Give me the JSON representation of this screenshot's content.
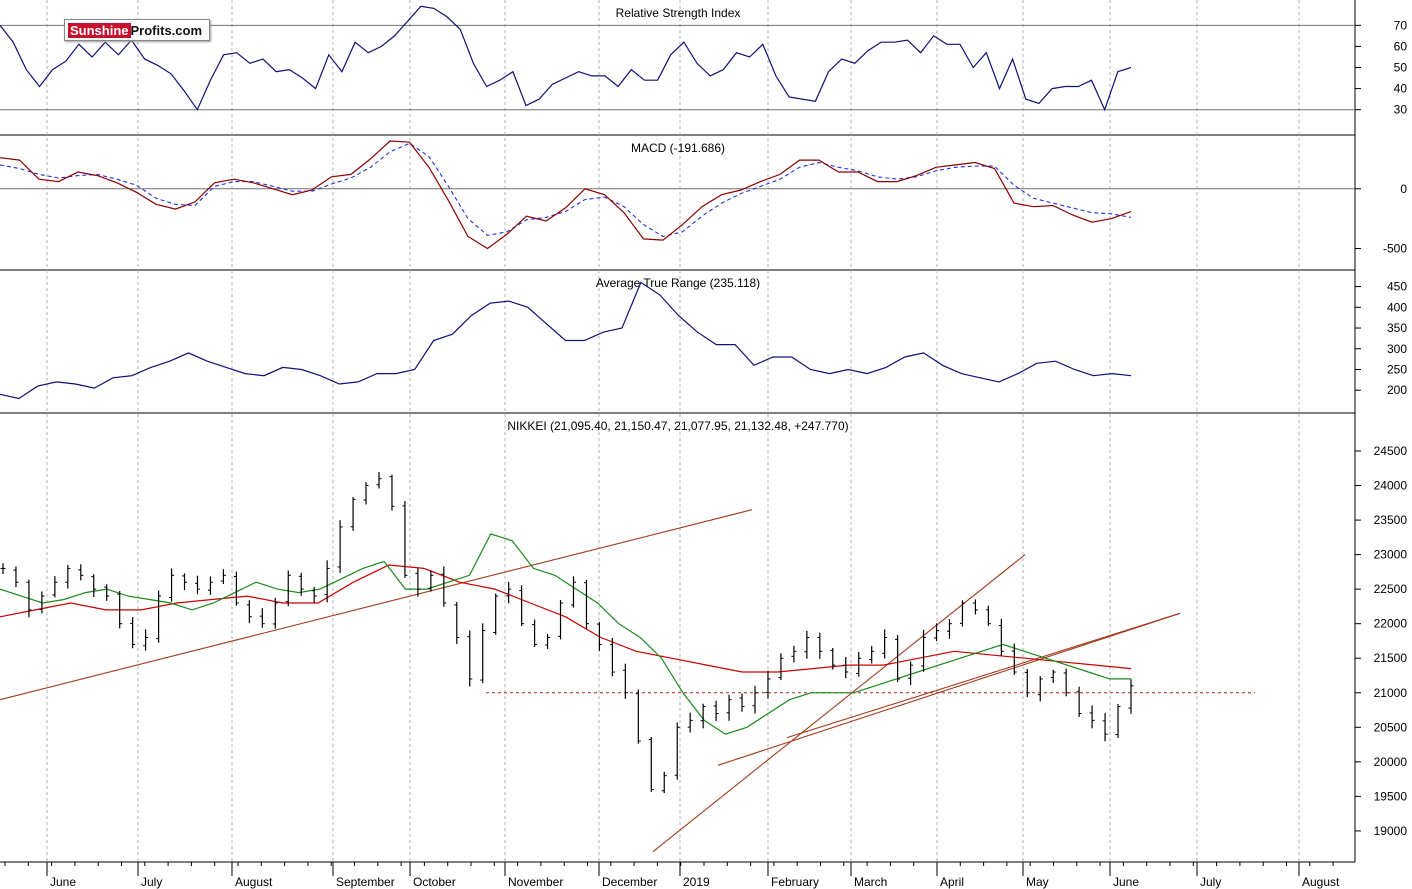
{
  "logo": {
    "part1": "Sunshine",
    "part2": "Profits.com"
  },
  "colors": {
    "price_bar": "#000000",
    "ma_short": "#1a8a1a",
    "ma_long": "#cc0000",
    "trend_line": "#a23a1a",
    "support_line": "#b22222",
    "rsi_line": "#101078",
    "macd_line": "#8b0000",
    "signal_line": "#2233dd",
    "atr_line": "#101078",
    "grid": "#b0b0b0",
    "ref_line": "#707070"
  },
  "chart_data": [
    {
      "type": "line",
      "title": "Relative Strength Index",
      "ylim": [
        18,
        82
      ],
      "ticks": [
        30,
        40,
        50,
        60,
        70
      ],
      "reference_lines": [
        30,
        70
      ],
      "series": [
        {
          "values": [
            70,
            62,
            49,
            41,
            49,
            53,
            61,
            55,
            62,
            56,
            63,
            54,
            51,
            47,
            39,
            30,
            44,
            56,
            57,
            52,
            54,
            48,
            49,
            45,
            40,
            56,
            48,
            62,
            57,
            60,
            65,
            72,
            79,
            78,
            74,
            68,
            52,
            41,
            44,
            48,
            32,
            35,
            42,
            45,
            48,
            46,
            46,
            41,
            49,
            44,
            44,
            56,
            62,
            52,
            46,
            49,
            57,
            55,
            61,
            46,
            36,
            35,
            34,
            48,
            54,
            52,
            58,
            62,
            62,
            63,
            57,
            65,
            61,
            61,
            50,
            57,
            40,
            54,
            35,
            33,
            40,
            41,
            41,
            44,
            30,
            48,
            50
          ]
        }
      ]
    },
    {
      "type": "line",
      "title": "MACD (-191.686)",
      "ylim": [
        -680,
        450
      ],
      "ticks": [
        0,
        -500
      ],
      "reference_lines": [
        0
      ],
      "series": [
        {
          "values": [
            260,
            240,
            80,
            60,
            140,
            110,
            50,
            -30,
            -130,
            -170,
            -110,
            50,
            80,
            50,
            0,
            -50,
            -10,
            100,
            120,
            250,
            400,
            390,
            180,
            -100,
            -400,
            -500,
            -380,
            -230,
            -270,
            -160,
            0,
            -50,
            -200,
            -420,
            -430,
            -300,
            -150,
            -50,
            -10,
            60,
            120,
            240,
            240,
            140,
            140,
            60,
            60,
            110,
            180,
            200,
            220,
            170,
            -120,
            -150,
            -140,
            -220,
            -280,
            -250,
            -191
          ]
        },
        {
          "values": [
            200,
            170,
            120,
            90,
            110,
            120,
            80,
            30,
            -80,
            -130,
            -140,
            20,
            60,
            60,
            20,
            -20,
            -20,
            40,
            90,
            180,
            310,
            380,
            270,
            20,
            -250,
            -390,
            -360,
            -260,
            -240,
            -190,
            -90,
            -70,
            -150,
            -300,
            -400,
            -360,
            -230,
            -120,
            -40,
            20,
            80,
            180,
            220,
            180,
            150,
            100,
            80,
            100,
            150,
            180,
            190,
            190,
            30,
            -80,
            -120,
            -160,
            -200,
            -210,
            -240
          ]
        }
      ]
    },
    {
      "type": "line",
      "title": "Average True Range (235.118)",
      "ylim": [
        145,
        490
      ],
      "ticks": [
        200,
        250,
        300,
        350,
        400,
        450
      ],
      "series": [
        {
          "values": [
            190,
            180,
            210,
            220,
            215,
            205,
            230,
            235,
            255,
            270,
            290,
            270,
            255,
            240,
            235,
            255,
            250,
            235,
            215,
            220,
            240,
            240,
            250,
            320,
            335,
            380,
            410,
            415,
            400,
            360,
            320,
            320,
            340,
            350,
            460,
            430,
            380,
            340,
            310,
            310,
            260,
            280,
            280,
            250,
            240,
            250,
            240,
            255,
            280,
            290,
            260,
            240,
            230,
            220,
            240,
            265,
            270,
            250,
            235,
            240,
            235
          ]
        }
      ]
    },
    {
      "type": "bar",
      "title": "NIKKEI (21,095.40, 21,150.47, 21,077.95, 21,132.48, +247.770)",
      "ylim": [
        18550,
        25050
      ],
      "ticks": [
        19000,
        19500,
        20000,
        20500,
        21000,
        21500,
        22000,
        22500,
        23000,
        23500,
        24000,
        24500
      ],
      "close": [
        22800,
        22600,
        22200,
        22400,
        22600,
        22800,
        22700,
        22500,
        22400,
        22000,
        21700,
        21800,
        22400,
        22700,
        22600,
        22500,
        22600,
        22700,
        22300,
        22100,
        22000,
        22300,
        22700,
        22500,
        22400,
        22800,
        23400,
        23800,
        24000,
        24100,
        23700,
        22700,
        22500,
        22700,
        22300,
        21800,
        21200,
        21900,
        22400,
        22500,
        22000,
        21700,
        21800,
        22300,
        22600,
        22000,
        21700,
        21300,
        21000,
        20300,
        19600,
        19800,
        20500,
        20600,
        20800,
        20700,
        20900,
        20800,
        21000,
        21200,
        21500,
        21600,
        21800,
        21600,
        21400,
        21300,
        21500,
        21600,
        21800,
        21200,
        21400,
        21800,
        21900,
        22000,
        22300,
        22200,
        22000,
        21600,
        21300,
        21000,
        21200,
        21300,
        21000,
        20700,
        20600,
        20400,
        20800,
        21100
      ],
      "ma_short": [
        22500,
        22400,
        22300,
        22350,
        22450,
        22500,
        22400,
        22350,
        22300,
        22200,
        22300,
        22450,
        22600,
        22500,
        22450,
        22500,
        22650,
        22800,
        22900,
        22500,
        22500,
        22600,
        22700,
        23300,
        23200,
        22800,
        22700,
        22500,
        22300,
        22000,
        21800,
        21500,
        21000,
        20600,
        20400,
        20500,
        20700,
        20900,
        21000,
        21000,
        21000,
        21100,
        21200,
        21300,
        21400,
        21500,
        21600,
        21700,
        21600,
        21500,
        21400,
        21300,
        21200,
        21200
      ],
      "ma_long": [
        22100,
        22200,
        22300,
        22200,
        22200,
        22300,
        22350,
        22400,
        22300,
        22300,
        22600,
        22850,
        22800,
        22600,
        22500,
        22300,
        22100,
        21800,
        21600,
        21500,
        21400,
        21300,
        21300,
        21350,
        21400,
        21400,
        21500,
        21600,
        21550,
        21500,
        21450,
        21400,
        21350
      ],
      "trend_lines": [
        {
          "points": [
            [
              0,
              20900
            ],
            [
              752,
              23650
            ]
          ]
        },
        {
          "points": [
            [
              653,
              18700
            ],
            [
              1025,
              23000
            ]
          ]
        },
        {
          "points": [
            [
              718,
              19950
            ],
            [
              1180,
              22150
            ]
          ]
        },
        {
          "points": [
            [
              787,
              20350
            ],
            [
              1180,
              22150
            ]
          ]
        }
      ],
      "support_line": {
        "value": 21000,
        "from": 486,
        "to": 1255
      }
    }
  ],
  "x_axis": {
    "labels": [
      "June",
      "July",
      "August",
      "September",
      "October",
      "November",
      "December",
      "2019",
      "February",
      "March",
      "April",
      "May",
      "June",
      "July",
      "August"
    ]
  }
}
